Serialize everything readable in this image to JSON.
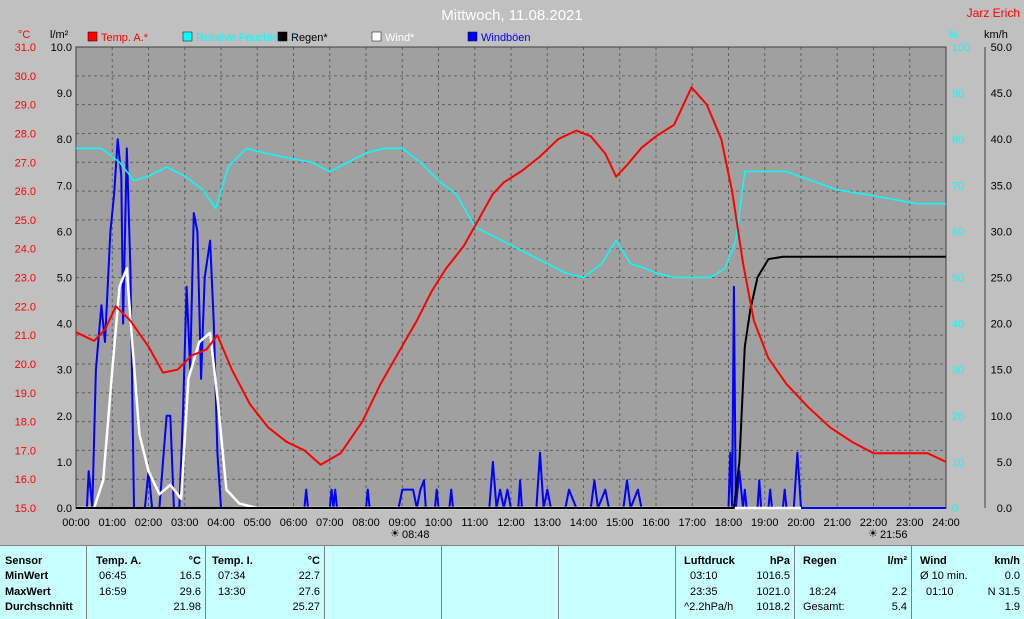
{
  "chart_data": {
    "type": "line",
    "title": "Mittwoch, 11.08.2021",
    "author": "Jarz Erich",
    "legend": [
      {
        "name": "Temp. A.*",
        "color": "#ff0000"
      },
      {
        "name": "Relative Feuchte A.*",
        "color": "#00ffff"
      },
      {
        "name": "Regen*",
        "color": "#000000"
      },
      {
        "name": "Wind*",
        "color": "#ffffff"
      },
      {
        "name": "Windböen",
        "color": "#0000ff"
      }
    ],
    "left_axis_label": "°C",
    "left2_axis_label": "l/m²",
    "right_axis_label": "%",
    "right2_axis_label": "km/h",
    "x_ticks": [
      "00:00",
      "01:00",
      "02:00",
      "03:00",
      "04:00",
      "05:00",
      "06:00",
      "07:00",
      "08:00",
      "09:00",
      "10:00",
      "11:00",
      "12:00",
      "13:00",
      "14:00",
      "15:00",
      "16:00",
      "17:00",
      "18:00",
      "19:00",
      "20:00",
      "21:00",
      "22:00",
      "23:00",
      "24:00"
    ],
    "temp_range": [
      15.0,
      31.0
    ],
    "temp_ticks": [
      "31.0",
      "30.0",
      "29.0",
      "28.0",
      "27.0",
      "26.0",
      "25.0",
      "24.0",
      "23.0",
      "22.0",
      "21.0",
      "20.0",
      "19.0",
      "18.0",
      "17.0",
      "16.0",
      "15.0"
    ],
    "rain_range": [
      0,
      10
    ],
    "rain_ticks": [
      "10.0",
      "9.0",
      "8.0",
      "7.0",
      "6.0",
      "5.0",
      "4.0",
      "3.0",
      "2.0",
      "1.0",
      "0.0"
    ],
    "humidity_range": [
      0,
      100
    ],
    "humidity_ticks": [
      "100",
      "90",
      "80",
      "70",
      "60",
      "50",
      "40",
      "30",
      "20",
      "10",
      "0"
    ],
    "wind_range": [
      0,
      50
    ],
    "wind_ticks": [
      "50.0",
      "45.0",
      "40.0",
      "35.0",
      "30.0",
      "25.0",
      "20.0",
      "15.0",
      "10.0",
      "5.0",
      "0.0"
    ],
    "sunrise": "08:48",
    "sunset": "21:56",
    "series": [
      {
        "name": "Temp. A.*",
        "unit": "°C",
        "points": [
          [
            0,
            21.1
          ],
          [
            0.5,
            20.8
          ],
          [
            0.8,
            21.2
          ],
          [
            1.1,
            22.0
          ],
          [
            1.5,
            21.5
          ],
          [
            2.0,
            20.6
          ],
          [
            2.4,
            19.7
          ],
          [
            2.8,
            19.8
          ],
          [
            3.2,
            20.3
          ],
          [
            3.6,
            20.5
          ],
          [
            3.9,
            21.0
          ],
          [
            4.3,
            19.8
          ],
          [
            4.8,
            18.6
          ],
          [
            5.3,
            17.8
          ],
          [
            5.8,
            17.3
          ],
          [
            6.3,
            17.0
          ],
          [
            6.75,
            16.5
          ],
          [
            7.3,
            16.9
          ],
          [
            7.9,
            18.0
          ],
          [
            8.4,
            19.3
          ],
          [
            8.9,
            20.4
          ],
          [
            9.4,
            21.5
          ],
          [
            9.8,
            22.5
          ],
          [
            10.2,
            23.3
          ],
          [
            10.7,
            24.1
          ],
          [
            11.1,
            25.0
          ],
          [
            11.5,
            25.9
          ],
          [
            11.8,
            26.3
          ],
          [
            12.3,
            26.7
          ],
          [
            12.8,
            27.2
          ],
          [
            13.3,
            27.8
          ],
          [
            13.8,
            28.1
          ],
          [
            14.2,
            27.9
          ],
          [
            14.6,
            27.3
          ],
          [
            14.9,
            26.5
          ],
          [
            15.2,
            26.9
          ],
          [
            15.6,
            27.5
          ],
          [
            16.0,
            27.9
          ],
          [
            16.5,
            28.3
          ],
          [
            16.98,
            29.6
          ],
          [
            17.4,
            29.0
          ],
          [
            17.8,
            27.8
          ],
          [
            18.1,
            26.0
          ],
          [
            18.4,
            23.5
          ],
          [
            18.7,
            21.5
          ],
          [
            19.1,
            20.2
          ],
          [
            19.6,
            19.3
          ],
          [
            20.2,
            18.5
          ],
          [
            20.8,
            17.8
          ],
          [
            21.4,
            17.3
          ],
          [
            22.0,
            16.9
          ],
          [
            22.8,
            16.9
          ],
          [
            23.5,
            16.9
          ],
          [
            24,
            16.6
          ]
        ]
      },
      {
        "name": "Relative Feuchte A.*",
        "unit": "%",
        "points": [
          [
            0,
            78
          ],
          [
            0.7,
            78
          ],
          [
            1.2,
            75
          ],
          [
            1.6,
            71
          ],
          [
            2.0,
            72
          ],
          [
            2.5,
            74
          ],
          [
            3.0,
            72
          ],
          [
            3.5,
            69
          ],
          [
            3.85,
            65
          ],
          [
            4.2,
            74
          ],
          [
            4.7,
            78
          ],
          [
            5.2,
            77
          ],
          [
            5.8,
            76
          ],
          [
            6.5,
            75
          ],
          [
            7.0,
            73
          ],
          [
            7.5,
            75
          ],
          [
            8.0,
            77
          ],
          [
            8.5,
            78
          ],
          [
            9.0,
            78
          ],
          [
            9.5,
            75
          ],
          [
            10.0,
            71
          ],
          [
            10.5,
            68
          ],
          [
            11.0,
            61
          ],
          [
            11.5,
            59
          ],
          [
            12.0,
            57
          ],
          [
            12.5,
            55
          ],
          [
            13.0,
            53
          ],
          [
            13.5,
            51
          ],
          [
            14.0,
            50
          ],
          [
            14.5,
            53
          ],
          [
            14.9,
            58
          ],
          [
            15.3,
            53
          ],
          [
            15.7,
            52
          ],
          [
            16.0,
            51
          ],
          [
            16.5,
            50
          ],
          [
            17.0,
            50
          ],
          [
            17.5,
            50
          ],
          [
            17.9,
            52
          ],
          [
            18.2,
            58
          ],
          [
            18.45,
            73
          ],
          [
            19.0,
            73
          ],
          [
            19.6,
            73
          ],
          [
            20.3,
            71
          ],
          [
            21.0,
            69
          ],
          [
            21.8,
            68
          ],
          [
            22.5,
            67
          ],
          [
            23.2,
            66
          ],
          [
            24,
            66
          ]
        ]
      },
      {
        "name": "Regen*",
        "unit": "l/m²",
        "points": [
          [
            0,
            0
          ],
          [
            18.15,
            0
          ],
          [
            18.3,
            1.0
          ],
          [
            18.45,
            3.5
          ],
          [
            18.6,
            4.3
          ],
          [
            18.8,
            5.0
          ],
          [
            19.1,
            5.4
          ],
          [
            19.5,
            5.45
          ],
          [
            24,
            5.45
          ]
        ]
      },
      {
        "name": "Wind*",
        "unit": "km/h",
        "points": [
          [
            0,
            0
          ],
          [
            0.5,
            0
          ],
          [
            0.75,
            3
          ],
          [
            1.0,
            15
          ],
          [
            1.2,
            24
          ],
          [
            1.4,
            26
          ],
          [
            1.55,
            18
          ],
          [
            1.75,
            8
          ],
          [
            2.0,
            4
          ],
          [
            2.3,
            1.5
          ],
          [
            2.6,
            2.5
          ],
          [
            2.9,
            1
          ],
          [
            3.1,
            14
          ],
          [
            3.4,
            18
          ],
          [
            3.7,
            19
          ],
          [
            3.9,
            12
          ],
          [
            4.15,
            2
          ],
          [
            4.5,
            0.5
          ],
          [
            5.0,
            0
          ],
          [
            20,
            0
          ]
        ]
      },
      {
        "name": "Windböen",
        "unit": "km/h",
        "points": [
          [
            0,
            0
          ],
          [
            0.3,
            0
          ],
          [
            0.35,
            4
          ],
          [
            0.45,
            0
          ],
          [
            0.55,
            15
          ],
          [
            0.7,
            22
          ],
          [
            0.8,
            18
          ],
          [
            0.95,
            30
          ],
          [
            1.05,
            34
          ],
          [
            1.15,
            40
          ],
          [
            1.25,
            36
          ],
          [
            1.3,
            20
          ],
          [
            1.4,
            39
          ],
          [
            1.5,
            26
          ],
          [
            1.6,
            0
          ],
          [
            1.9,
            0
          ],
          [
            2.0,
            4
          ],
          [
            2.1,
            0
          ],
          [
            2.3,
            0
          ],
          [
            2.5,
            10
          ],
          [
            2.6,
            10
          ],
          [
            2.7,
            0
          ],
          [
            2.85,
            0
          ],
          [
            2.95,
            10
          ],
          [
            3.05,
            24
          ],
          [
            3.15,
            15
          ],
          [
            3.25,
            32
          ],
          [
            3.35,
            30
          ],
          [
            3.45,
            14
          ],
          [
            3.55,
            25
          ],
          [
            3.7,
            29
          ],
          [
            3.8,
            20
          ],
          [
            3.9,
            6
          ],
          [
            4.0,
            0
          ],
          [
            5,
            0
          ],
          [
            6.3,
            0
          ],
          [
            6.35,
            2
          ],
          [
            6.4,
            0
          ],
          [
            7.0,
            0
          ],
          [
            7.05,
            2
          ],
          [
            7.1,
            0
          ],
          [
            7.15,
            2
          ],
          [
            7.2,
            0
          ],
          [
            8.0,
            0
          ],
          [
            8.05,
            2
          ],
          [
            8.1,
            0
          ],
          [
            8.9,
            0
          ],
          [
            9.0,
            2
          ],
          [
            9.3,
            2
          ],
          [
            9.4,
            0
          ],
          [
            9.5,
            2
          ],
          [
            9.6,
            3
          ],
          [
            9.65,
            0
          ],
          [
            9.9,
            0
          ],
          [
            9.95,
            2
          ],
          [
            10.0,
            0
          ],
          [
            10.3,
            0
          ],
          [
            10.35,
            2
          ],
          [
            10.4,
            0
          ],
          [
            11.4,
            0
          ],
          [
            11.5,
            5
          ],
          [
            11.6,
            0
          ],
          [
            11.7,
            2
          ],
          [
            11.8,
            0
          ],
          [
            11.9,
            2
          ],
          [
            12.0,
            0
          ],
          [
            12.2,
            0
          ],
          [
            12.25,
            3
          ],
          [
            12.3,
            0
          ],
          [
            12.7,
            0
          ],
          [
            12.8,
            6
          ],
          [
            12.9,
            0
          ],
          [
            13.0,
            2
          ],
          [
            13.1,
            0
          ],
          [
            13.5,
            0
          ],
          [
            13.6,
            2
          ],
          [
            13.8,
            0
          ],
          [
            14.2,
            0
          ],
          [
            14.3,
            3
          ],
          [
            14.4,
            0
          ],
          [
            14.6,
            2
          ],
          [
            14.7,
            0
          ],
          [
            15.1,
            0
          ],
          [
            15.2,
            3
          ],
          [
            15.3,
            0
          ],
          [
            15.5,
            2
          ],
          [
            15.6,
            0
          ],
          [
            18.0,
            0
          ],
          [
            18.05,
            6
          ],
          [
            18.1,
            0
          ],
          [
            18.15,
            24
          ],
          [
            18.2,
            0
          ],
          [
            18.3,
            4
          ],
          [
            18.4,
            0
          ],
          [
            18.45,
            2
          ],
          [
            18.5,
            0
          ],
          [
            18.8,
            0
          ],
          [
            18.85,
            3
          ],
          [
            18.9,
            0
          ],
          [
            19.1,
            0
          ],
          [
            19.15,
            2
          ],
          [
            19.2,
            0
          ],
          [
            19.5,
            0
          ],
          [
            19.55,
            2
          ],
          [
            19.6,
            0
          ],
          [
            19.8,
            0
          ],
          [
            19.9,
            6
          ],
          [
            20.0,
            0
          ],
          [
            24,
            0
          ]
        ]
      }
    ]
  },
  "stats": {
    "sensor": {
      "header": "Sensor",
      "rows": [
        "MinWert",
        "MaxWert",
        "Durchschnitt"
      ]
    },
    "temp_a": {
      "header": "Temp. A.",
      "unit": "°C",
      "min_time": "06:45",
      "min_value": "16.5",
      "max_time": "16:59",
      "max_value": "29.6",
      "avg": "21.98"
    },
    "temp_i": {
      "header": "Temp. I.",
      "unit": "°C",
      "min_time": "07:34",
      "min_value": "22.7",
      "max_time": "13:30",
      "max_value": "27.6",
      "avg": "25.27"
    },
    "pressure": {
      "header": "Luftdruck",
      "unit": "hPa",
      "min_time": "03:10",
      "min_value": "1016.5",
      "max_time": "23:35",
      "max_value": "1021.0",
      "avg_label": "^2.2hPa/h",
      "avg": "1018.2"
    },
    "rain": {
      "header": "Regen",
      "unit": "l/m²",
      "max_time": "18:24",
      "max_value": "2.2",
      "total_label": "Gesamt:",
      "total": "5.4"
    },
    "wind": {
      "header": "Wind",
      "unit": "km/h",
      "avg_label": "Ø 10 min.",
      "avg_value": "0.0",
      "max_time": "01:10",
      "max_value": "N 31.5",
      "avg": "1.9"
    }
  }
}
